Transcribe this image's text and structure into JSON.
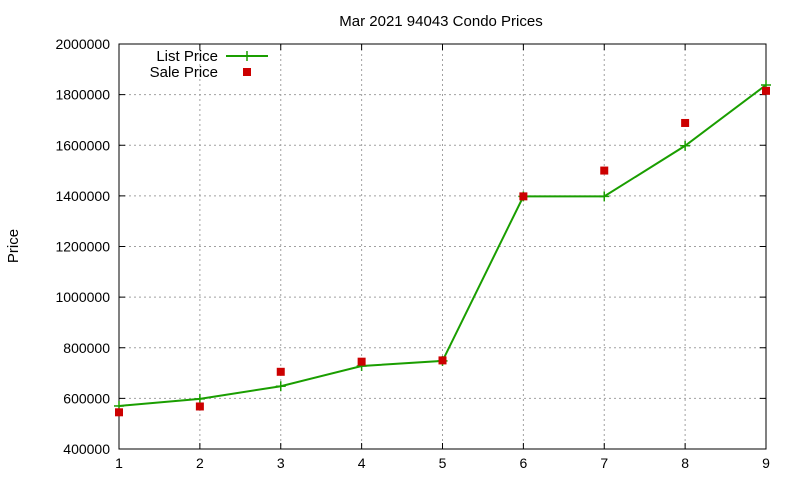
{
  "chart_data": {
    "type": "line",
    "title": "Mar 2021 94043 Condo Prices",
    "xlabel": "",
    "ylabel": "Price",
    "xlim": [
      1,
      9
    ],
    "ylim": [
      400000,
      2000000
    ],
    "xticks": [
      1,
      2,
      3,
      4,
      5,
      6,
      7,
      8,
      9
    ],
    "yticks": [
      400000,
      600000,
      800000,
      1000000,
      1200000,
      1400000,
      1600000,
      1800000,
      2000000
    ],
    "grid": true,
    "legend_position": "top-left",
    "series": [
      {
        "name": "List Price",
        "style": "line-with-plus-markers",
        "color": "#1a9e00",
        "x": [
          1,
          2,
          3,
          4,
          5,
          6,
          7,
          8,
          9
        ],
        "values": [
          570000,
          598000,
          648000,
          728000,
          748000,
          1398000,
          1398000,
          1598000,
          1838000
        ]
      },
      {
        "name": "Sale Price",
        "style": "square-markers",
        "color": "#cc0000",
        "x": [
          1,
          2,
          3,
          4,
          5,
          6,
          7,
          8,
          9
        ],
        "values": [
          545000,
          568000,
          705000,
          745000,
          750000,
          1398000,
          1500000,
          1688000,
          1815000
        ]
      }
    ]
  }
}
